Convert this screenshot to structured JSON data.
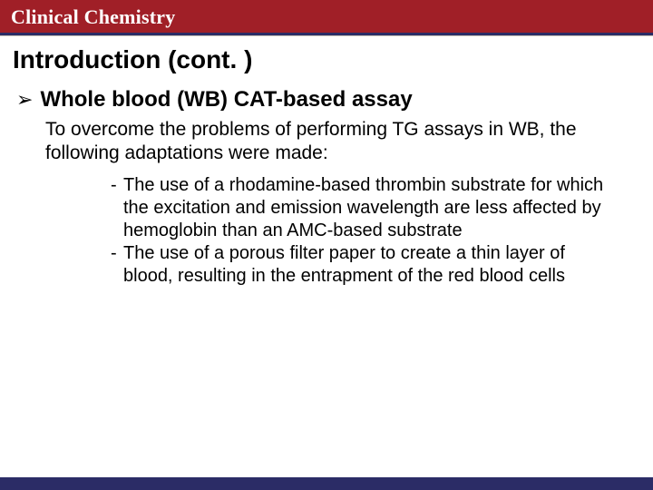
{
  "colors": {
    "header_bg": "#a01f27",
    "header_text": "#ffffff",
    "rule_dark": "#2b2c66",
    "rule_light": "#c9c2b6",
    "footer_band": "#2b2c66",
    "footer_gold": "#c9a24a",
    "body_bg": "#ffffff",
    "text": "#000000"
  },
  "typography": {
    "header_font": "Georgia, serif",
    "body_font": "Arial, sans-serif",
    "header_size_pt": 17,
    "title_size_pt": 21,
    "bullet_size_pt": 18,
    "para_size_pt": 16,
    "sub_size_pt": 15
  },
  "header": {
    "journal": "Clinical Chemistry"
  },
  "title": "Introduction (cont. )",
  "bullet": {
    "marker": "➢",
    "text": "Whole blood (WB) CAT-based assay"
  },
  "intro": "To overcome the problems of performing TG assays in WB, the following adaptations were made:",
  "subitems": [
    "The use of a rhodamine-based thrombin substrate for which the excitation and emission wavelength are less affected by hemoglobin than an AMC-based substrate",
    "The use of a porous filter paper to create a thin layer of blood, resulting in the entrapment of the red blood cells"
  ]
}
